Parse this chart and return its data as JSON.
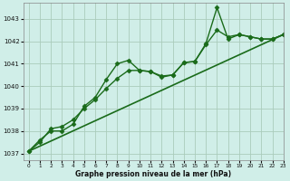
{
  "title": "Graphe pression niveau de la mer (hPa)",
  "background_color": "#d0eee8",
  "grid_color": "#aaccbb",
  "line_color": "#1a6b1a",
  "xlim": [
    -0.5,
    23
  ],
  "ylim": [
    1036.7,
    1043.7
  ],
  "yticks": [
    1037,
    1038,
    1039,
    1040,
    1041,
    1042,
    1043
  ],
  "xticks": [
    0,
    1,
    2,
    3,
    4,
    5,
    6,
    7,
    8,
    9,
    10,
    11,
    12,
    13,
    14,
    15,
    16,
    17,
    18,
    19,
    20,
    21,
    22,
    23
  ],
  "series": [
    {
      "x": [
        0,
        1,
        2,
        3,
        4,
        5,
        6,
        7,
        8,
        9,
        10,
        11,
        12,
        13,
        14,
        15,
        16,
        17,
        18,
        19,
        20,
        21,
        22,
        23
      ],
      "y": [
        1037.1,
        1037.6,
        1038.0,
        1038.0,
        1038.3,
        1039.1,
        1039.5,
        1040.3,
        1041.0,
        1041.15,
        1040.7,
        1040.65,
        1040.4,
        1040.5,
        1041.05,
        1041.1,
        1041.9,
        1043.5,
        1042.1,
        1042.3,
        1042.2,
        1042.1,
        1042.1,
        1042.3
      ],
      "marker": "D",
      "markersize": 2.5,
      "linewidth": 1.0,
      "linestyle": "-"
    },
    {
      "x": [
        0,
        1,
        2,
        3,
        4,
        5,
        6,
        7,
        8,
        9,
        10,
        11,
        12,
        13,
        14,
        15,
        16,
        17,
        18,
        19,
        20,
        21,
        22,
        23
      ],
      "y": [
        1037.1,
        1037.5,
        1038.1,
        1038.2,
        1038.5,
        1039.0,
        1039.4,
        1039.9,
        1040.35,
        1040.7,
        1040.7,
        1040.65,
        1040.45,
        1040.5,
        1041.05,
        1041.1,
        1041.85,
        1042.5,
        1042.2,
        1042.3,
        1042.2,
        1042.1,
        1042.1,
        1042.3
      ],
      "marker": "D",
      "markersize": 2.5,
      "linewidth": 1.0,
      "linestyle": "-"
    },
    {
      "x": [
        0,
        23
      ],
      "y": [
        1037.1,
        1042.3
      ],
      "marker": null,
      "markersize": 0,
      "linewidth": 1.2,
      "linestyle": "-"
    }
  ]
}
